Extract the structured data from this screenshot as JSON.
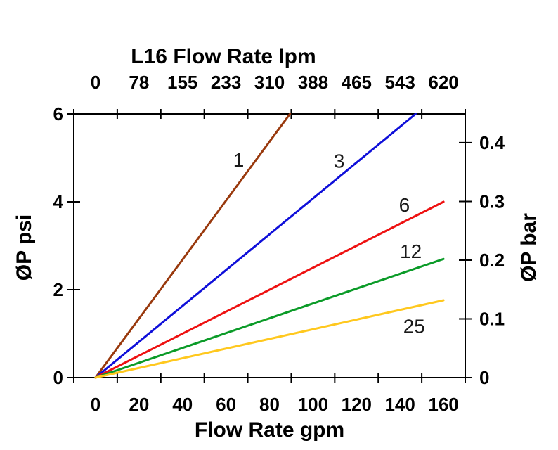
{
  "chart_data": {
    "type": "line",
    "title": "L16 Flow Rate lpm",
    "grid": false,
    "legend": "none - series labeled inline on plot",
    "top_axis": {
      "title": "L16 Flow Rate lpm",
      "unit": "lpm",
      "tick_labels": [
        "0",
        "78",
        "155",
        "233",
        "310",
        "388",
        "465",
        "543",
        "620"
      ]
    },
    "bottom_axis": {
      "title": "Flow Rate gpm",
      "unit": "gpm",
      "tick_labels": [
        "0",
        "20",
        "40",
        "60",
        "80",
        "100",
        "120",
        "140",
        "160"
      ],
      "tick_values": [
        0,
        20,
        40,
        60,
        80,
        100,
        120,
        140,
        160
      ]
    },
    "left_axis": {
      "title": "ØP psi",
      "unit": "psi",
      "tick_labels": [
        "0",
        "2",
        "4",
        "6"
      ],
      "tick_values": [
        0,
        2,
        4,
        6
      ],
      "range": [
        0,
        6
      ]
    },
    "right_axis": {
      "title": "ØP bar",
      "unit": "bar",
      "tick_labels": [
        "0",
        "0.1",
        "0.2",
        "0.3",
        "0.4"
      ],
      "tick_values": [
        0,
        0.1,
        0.2,
        0.3,
        0.4
      ],
      "range": [
        0,
        0.449
      ]
    },
    "series": [
      {
        "label": "1",
        "color": "#99390D",
        "points": {
          "gpm": [
            0,
            89.4
          ],
          "psi": [
            0,
            6.0
          ]
        },
        "slope_psi_per_gpm": 0.0671,
        "label_at": {
          "gpm": 65.8,
          "psi": 4.96
        }
      },
      {
        "label": "3",
        "color": "#0F0FD9",
        "points": {
          "gpm": [
            0,
            147.2
          ],
          "psi": [
            0,
            6.0
          ]
        },
        "slope_psi_per_gpm": 0.0408,
        "label_at": {
          "gpm": 112.0,
          "psi": 4.94
        }
      },
      {
        "label": "6",
        "color": "#EE1111",
        "points": {
          "gpm": [
            0,
            160
          ],
          "psi": [
            0,
            4.0
          ]
        },
        "slope_psi_per_gpm": 0.025,
        "label_at": {
          "gpm": 142.0,
          "psi": 3.94
        }
      },
      {
        "label": "12",
        "color": "#0B9B28",
        "points": {
          "gpm": [
            0,
            160
          ],
          "psi": [
            0,
            2.7
          ]
        },
        "slope_psi_per_gpm": 0.0169,
        "label_at": {
          "gpm": 145.0,
          "psi": 2.88
        }
      },
      {
        "label": "25",
        "color": "#FFC81E",
        "points": {
          "gpm": [
            0,
            160
          ],
          "psi": [
            0,
            1.76
          ]
        },
        "slope_psi_per_gpm": 0.011,
        "label_at": {
          "gpm": 146.5,
          "psi": 1.18
        }
      }
    ],
    "colors": {
      "axis": "#000000",
      "background": "#ffffff"
    }
  }
}
